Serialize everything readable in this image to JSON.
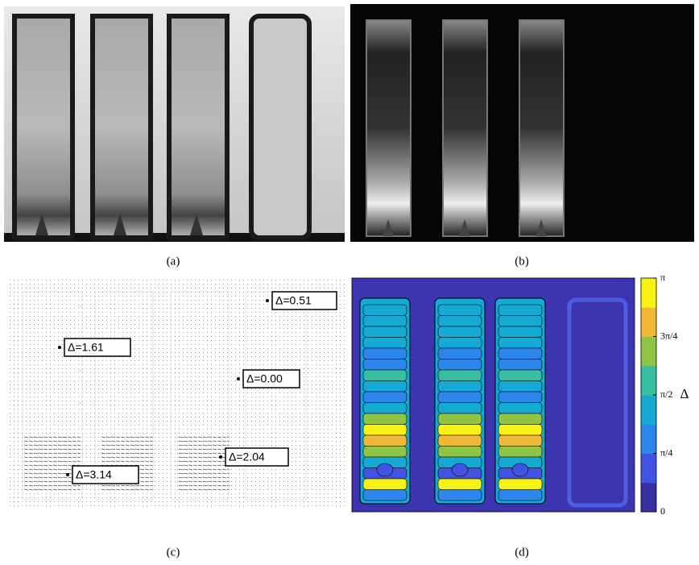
{
  "figure": {
    "panels": [
      {
        "caption": "(a)"
      },
      {
        "caption": "(b)"
      },
      {
        "caption": "(c)",
        "annotations": [
          "Δ=0.51",
          "Δ=1.61",
          "Δ=0.00",
          "Δ=2.04",
          "Δ=3.14"
        ]
      },
      {
        "caption": "(d)",
        "colorbar": {
          "label": "Δ",
          "lim": [
            0,
            3.1416
          ],
          "ticks": [
            0,
            {
              "value": 0.7854,
              "label": "π/4"
            },
            {
              "value": 1.5708,
              "label": "π/2"
            },
            {
              "value": 2.3562,
              "label": "3π/4"
            },
            {
              "value": 3.1416,
              "label": "π"
            }
          ],
          "colors": [
            "#3b2fa4",
            "#4153e3",
            "#2d86ec",
            "#15aad3",
            "#38bfa0",
            "#8fc544",
            "#f0b835",
            "#f9f314"
          ]
        }
      }
    ]
  }
}
